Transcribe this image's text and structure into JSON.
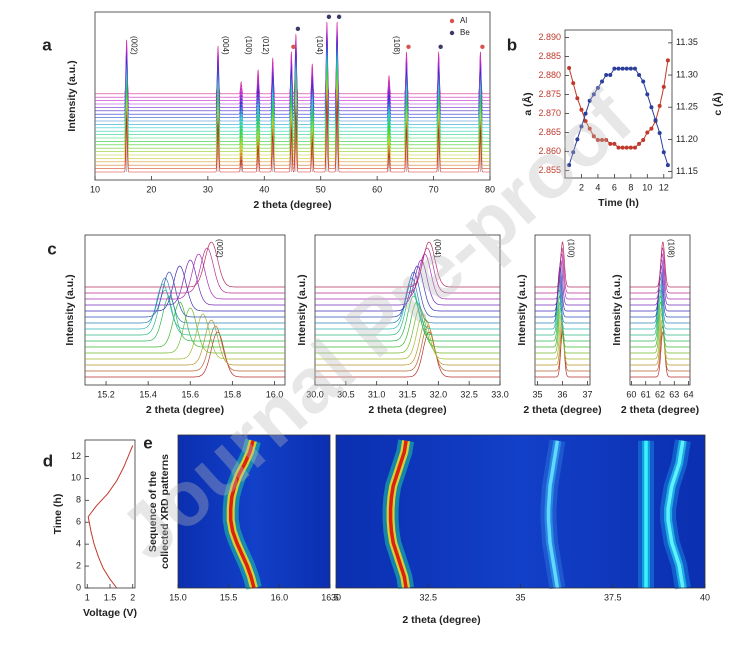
{
  "watermark": "Journal Pre-proof",
  "chart_data": [
    {
      "type": "xrd",
      "panel": "a",
      "xlabel": "2 theta (degree)",
      "ylabel": "Intensity (a.u.)",
      "xlim": [
        10,
        80
      ],
      "xticks": [
        10,
        20,
        30,
        40,
        50,
        60,
        70,
        80
      ],
      "peaks": {
        "x": [
          15.6,
          31.8,
          35.9,
          38.9,
          41.5,
          44.8,
          45.6,
          48.5,
          51.1,
          52.9,
          62.1,
          65.2,
          70.9,
          78.3
        ],
        "values": [
          90,
          80,
          20,
          40,
          60,
          70,
          100,
          50,
          120,
          120,
          30,
          70,
          70,
          70
        ]
      },
      "annotations": [
        {
          "text": "(002)",
          "x": 15.6
        },
        {
          "text": "(004)",
          "x": 31.8
        },
        {
          "text": "(100)",
          "x": 35.9
        },
        {
          "text": "(012)",
          "x": 38.9
        },
        {
          "text": "(104)",
          "x": 48.5
        },
        {
          "text": "(108)",
          "x": 62.1
        }
      ],
      "series": [
        {
          "name": "Al",
          "color": "#d9534f",
          "x": [
            44.8,
            65.2,
            78.3
          ]
        },
        {
          "name": "Be",
          "color": "#3a3a6a",
          "x": [
            45.6,
            51.1,
            52.9,
            70.9
          ]
        }
      ]
    },
    {
      "type": "line",
      "panel": "b",
      "xlabel": "Time (h)",
      "ylabel": "a (Å)",
      "y2label": "c (Å)",
      "markers": true,
      "xlim": [
        0,
        13
      ],
      "xticks": [
        2,
        4,
        6,
        8,
        10,
        12
      ],
      "ylim": [
        2.853,
        2.892
      ],
      "yticks": [
        2.855,
        {
          "value": 2.86,
          "label": "2.860"
        },
        2.865,
        {
          "value": 2.87,
          "label": "2.870"
        },
        2.875,
        {
          "value": 2.88,
          "label": "2.880"
        },
        2.885,
        {
          "value": 2.89,
          "label": "2.890"
        }
      ],
      "y2lim": [
        11.14,
        11.37
      ],
      "y2ticks": [
        11.15,
        {
          "value": 11.2,
          "label": "11.20"
        },
        11.25,
        {
          "value": 11.3,
          "label": "11.30"
        },
        11.35
      ],
      "x": [
        0.5,
        1,
        1.5,
        2,
        2.5,
        3,
        3.5,
        4,
        4.5,
        5,
        5.5,
        6,
        6.5,
        7,
        7.5,
        8,
        8.5,
        9,
        9.5,
        10,
        10.5,
        11,
        11.5,
        12,
        12.5
      ],
      "series": [
        {
          "color": "#c0392b",
          "axis": "y",
          "values": [
            2.882,
            2.878,
            2.874,
            2.871,
            2.868,
            2.866,
            2.864,
            2.863,
            2.863,
            2.863,
            2.862,
            2.862,
            2.861,
            2.861,
            2.861,
            2.861,
            2.861,
            2.862,
            2.863,
            2.865,
            2.866,
            2.868,
            2.872,
            2.877,
            2.884
          ]
        },
        {
          "color": "#2c3e9c",
          "axis": "y2",
          "values": [
            11.16,
            11.18,
            11.2,
            11.22,
            11.24,
            11.26,
            11.27,
            11.28,
            11.29,
            11.3,
            11.3,
            11.31,
            11.31,
            11.31,
            11.31,
            11.31,
            11.31,
            11.3,
            11.29,
            11.27,
            11.25,
            11.23,
            11.21,
            11.18,
            11.16
          ]
        }
      ]
    },
    {
      "type": "peak_shift",
      "panel": "c",
      "xlabel": "2 theta (degree)",
      "ylabel": "Intensity (a.u.)",
      "annotation": "(002)",
      "xlim": [
        15.1,
        16.05
      ],
      "xticks": [
        15.2,
        15.4,
        15.6,
        15.8,
        {
          "value": 16,
          "label": "16.0"
        }
      ],
      "x": [
        15.73,
        15.72,
        15.7,
        15.66,
        15.6,
        15.55,
        15.5,
        15.48,
        15.47,
        15.48,
        15.5,
        15.55,
        15.6,
        15.64,
        15.68,
        15.7
      ]
    },
    {
      "type": "peak_shift",
      "xlabel": "2 theta (degree)",
      "ylabel": "Intensity (a.u.)",
      "annotation": "(004)",
      "xlim": [
        30,
        33
      ],
      "xticks": [
        {
          "value": 30,
          "label": "30.0"
        },
        30.5,
        {
          "value": 31,
          "label": "31.0"
        },
        31.5,
        {
          "value": 32,
          "label": "32.0"
        },
        32.5,
        {
          "value": 33,
          "label": "33.0"
        }
      ],
      "x": [
        31.85,
        31.83,
        31.8,
        31.75,
        31.7,
        31.65,
        31.6,
        31.57,
        31.56,
        31.57,
        31.6,
        31.66,
        31.72,
        31.78,
        31.82,
        31.85
      ]
    },
    {
      "type": "peak_shift",
      "xlabel": "2 theta (degree)",
      "ylabel": "Intensity (a.u.)",
      "annotation": "(100)",
      "xlim": [
        34.9,
        37.1
      ],
      "xticks": [
        35,
        36,
        37
      ],
      "x": [
        36.0,
        36.0,
        35.98,
        35.95,
        35.92,
        35.9,
        35.88,
        35.86,
        35.85,
        35.86,
        35.88,
        35.9,
        35.93,
        35.96,
        35.98,
        36.0
      ]
    },
    {
      "type": "peak_shift",
      "xlabel": "2 theta (degree)",
      "ylabel": "Intensity (a.u.)",
      "annotation": "(108)",
      "xlim": [
        59.9,
        64.1
      ],
      "xticks": [
        60,
        61,
        62,
        63,
        64
      ],
      "x": [
        62.2,
        62.18,
        62.15,
        62.12,
        62.08,
        62.05,
        62.02,
        62.0,
        62.0,
        62.02,
        62.05,
        62.08,
        62.12,
        62.15,
        62.18,
        62.2
      ]
    },
    {
      "type": "line",
      "panel": "d",
      "xlabel": "Voltage (V)",
      "ylabel": "Time (h)",
      "color": "#c0392b",
      "xlim": [
        0.95,
        2.05
      ],
      "xticks": [
        1,
        1.5,
        2
      ],
      "ylim": [
        0,
        13.5
      ],
      "yticks": [
        0,
        2,
        4,
        6,
        8,
        10,
        12
      ],
      "x": [
        1.65,
        1.5,
        1.35,
        1.25,
        1.15,
        1.08,
        1.02,
        1.2,
        1.45,
        1.65,
        1.8,
        1.9,
        2.0
      ],
      "values": [
        0,
        0.8,
        1.8,
        2.8,
        4,
        5.2,
        6.5,
        7.5,
        8.6,
        9.8,
        11,
        12,
        13
      ]
    },
    {
      "type": "heatmap",
      "panel": "e",
      "xlabel": "2 theta (degree)",
      "ylabel": [
        "Sequence of the",
        "collected XRD patterns"
      ],
      "ylim": [
        0,
        13.5
      ],
      "y": [
        0,
        1,
        2,
        3,
        4,
        5,
        6,
        7,
        8,
        9,
        10,
        11,
        12,
        13
      ],
      "panels": [
        {
          "xlim": [
            15,
            16.5
          ],
          "xticks": [
            {
              "value": 15,
              "label": "15.0"
            },
            15.5,
            {
              "value": 16,
              "label": "16.0"
            },
            16.5
          ],
          "ridges": [
            {
              "colors": [
                "#e02010",
                "#f0e020",
                "#20c8a0"
              ],
              "x": [
                15.75,
                15.72,
                15.68,
                15.63,
                15.58,
                15.54,
                15.52,
                15.52,
                15.53,
                15.56,
                15.6,
                15.66,
                15.71,
                15.74
              ]
            }
          ]
        },
        {
          "xlim": [
            30,
            40
          ],
          "xticks": [
            30,
            32.5,
            35,
            37.5,
            40
          ],
          "ridges": [
            {
              "colors": [
                "#e02010",
                "#f0e020",
                "#20c8a0"
              ],
              "x": [
                31.9,
                31.85,
                31.75,
                31.65,
                31.55,
                31.5,
                31.48,
                31.48,
                31.5,
                31.55,
                31.65,
                31.75,
                31.85,
                31.9
              ]
            },
            {
              "colors": [
                "#60d8ff",
                "#2a90e8",
                "#2a70d8"
              ],
              "x": [
                36.0,
                35.95,
                35.9,
                35.85,
                35.8,
                35.78,
                35.76,
                35.76,
                35.78,
                35.8,
                35.85,
                35.9,
                35.95,
                36.0
              ]
            },
            {
              "colors": [
                "#40f0ff",
                "#10b0e0",
                "#1a80e0"
              ],
              "x": [
                38.4,
                38.4,
                38.4,
                38.4,
                38.4,
                38.4,
                38.4,
                38.4,
                38.4,
                38.4,
                38.4,
                38.4,
                38.4,
                38.4
              ]
            },
            {
              "colors": [
                "#60f0ff",
                "#20b8e8",
                "#1a80e0"
              ],
              "x": [
                39.4,
                39.35,
                39.3,
                39.2,
                39.1,
                39.05,
                39.0,
                39.0,
                39.05,
                39.1,
                39.2,
                39.3,
                39.35,
                39.4
              ]
            }
          ]
        }
      ]
    }
  ]
}
